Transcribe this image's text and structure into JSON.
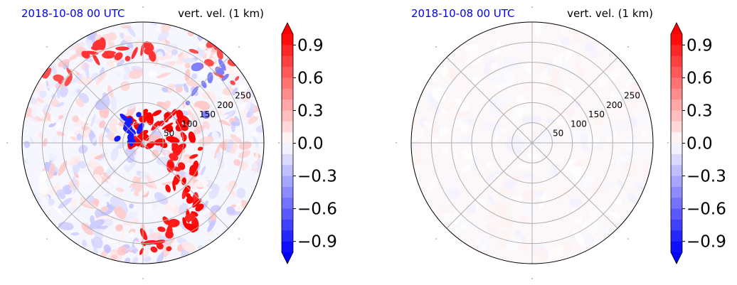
{
  "chart_data": [
    {
      "type": "heatmap",
      "projection": "polar",
      "title_left": "2018-10-08 00 UTC",
      "title_right": "vert. vel. (1 km)",
      "radial_ticks": [
        "50",
        "100",
        "150",
        "200",
        "250"
      ],
      "radial_values": [
        50,
        100,
        150,
        200,
        250
      ],
      "field": "active",
      "colorbar": {
        "ticks": [
          "−0.9",
          "−0.6",
          "−0.3",
          "0.0",
          "0.3",
          "0.6",
          "0.9"
        ],
        "tick_values": [
          -0.9,
          -0.6,
          -0.3,
          0.0,
          0.3,
          0.6,
          0.9
        ],
        "range": [
          -1.0,
          1.0
        ],
        "extend": "both",
        "cmap": "bwr"
      }
    },
    {
      "type": "heatmap",
      "projection": "polar",
      "title_left": "2018-10-08 00 UTC",
      "title_right": "vert. vel. (1 km)",
      "radial_ticks": [
        "50",
        "100",
        "150",
        "200",
        "250"
      ],
      "radial_values": [
        50,
        100,
        150,
        200,
        250
      ],
      "field": "near-zero",
      "colorbar": {
        "ticks": [
          "−0.9",
          "−0.6",
          "−0.3",
          "0.0",
          "0.3",
          "0.6",
          "0.9"
        ],
        "tick_values": [
          -0.9,
          -0.6,
          -0.3,
          0.0,
          0.3,
          0.6,
          0.9
        ],
        "range": [
          -1.0,
          1.0
        ],
        "extend": "both",
        "cmap": "bwr"
      }
    }
  ],
  "colors": {
    "title_left": "#0000ff",
    "title_right": "#000000",
    "grid": "#b0b0b0",
    "frame": "#000000",
    "cmap_low": "#0000ff",
    "cmap_mid": "#ffffff",
    "cmap_high": "#ff0000"
  }
}
